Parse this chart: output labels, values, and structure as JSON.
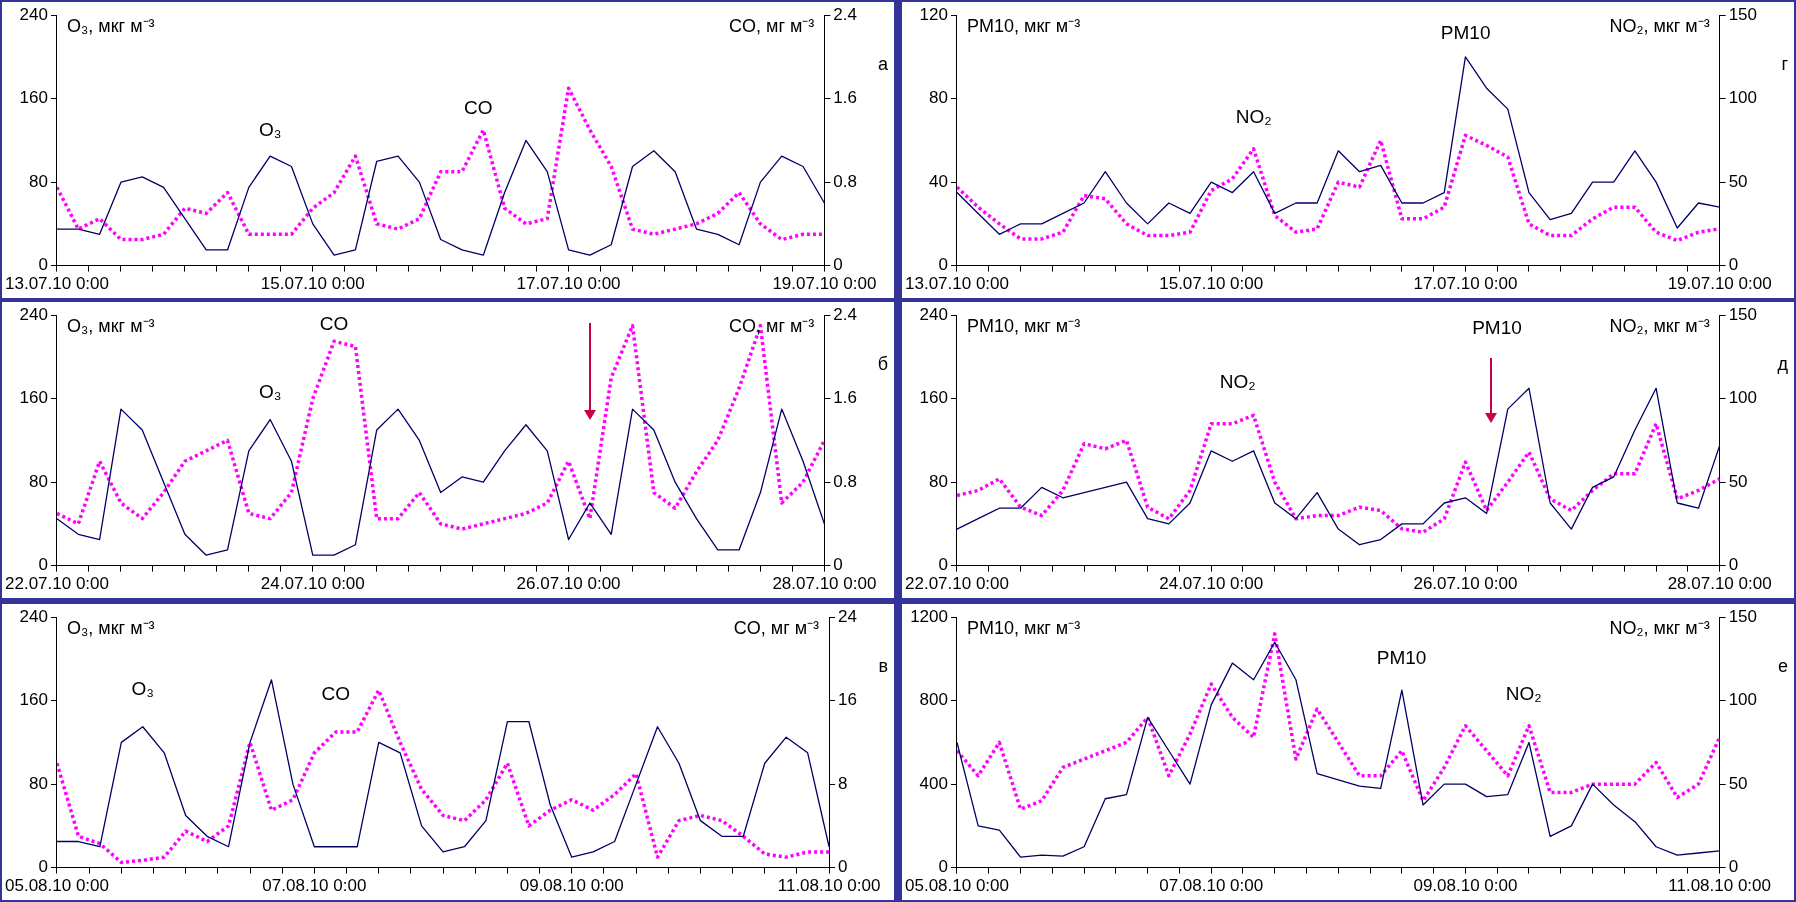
{
  "chart_data": [
    {
      "type": "line",
      "ylabel": "O₃, мкг м⁻³",
      "y2label": "CO, мг м⁻³",
      "annotations": [
        "а"
      ],
      "x": [
        "--07-13T00:00",
        "--07-13T04:00",
        "--07-13T08:00",
        "--07-13T12:00",
        "--07-13T16:00",
        "--07-13T20:00",
        "--07-14T00:00",
        "--07-14T04:00",
        "--07-14T08:00",
        "--07-14T12:00",
        "--07-14T16:00",
        "--07-14T20:00",
        "--07-15T00:00",
        "--07-15T04:00",
        "--07-15T08:00",
        "--07-15T12:00",
        "--07-15T16:00",
        "--07-15T20:00",
        "--07-16T00:00",
        "--07-16T04:00",
        "--07-16T08:00",
        "--07-16T12:00",
        "--07-16T16:00",
        "--07-16T20:00",
        "--07-17T00:00",
        "--07-17T04:00",
        "--07-17T08:00",
        "--07-17T12:00",
        "--07-17T16:00",
        "--07-17T20:00",
        "--07-18T00:00",
        "--07-18T04:00",
        "--07-18T08:00",
        "--07-18T12:00",
        "--07-18T16:00",
        "--07-18T20:00",
        "--07-19T00:00"
      ],
      "xlim": [
        "--07-13T00:00",
        "--07-19T00:00"
      ],
      "xticks": [
        {
          "value": "--07-13T00:00",
          "label": "13.07.10 0:00"
        },
        {
          "value": "--07-13T06:00",
          "label": null
        },
        {
          "value": "--07-13T12:00",
          "label": null
        },
        {
          "value": "--07-13T18:00",
          "label": null
        },
        {
          "value": "--07-14T00:00",
          "label": null
        },
        {
          "value": "--07-14T06:00",
          "label": null
        },
        {
          "value": "--07-14T12:00",
          "label": null
        },
        {
          "value": "--07-14T18:00",
          "label": null
        },
        {
          "value": "--07-15T00:00",
          "label": "15.07.10 0:00"
        },
        {
          "value": "--07-15T06:00",
          "label": null
        },
        {
          "value": "--07-15T12:00",
          "label": null
        },
        {
          "value": "--07-15T18:00",
          "label": null
        },
        {
          "value": "--07-16T00:00",
          "label": null
        },
        {
          "value": "--07-16T06:00",
          "label": null
        },
        {
          "value": "--07-16T12:00",
          "label": null
        },
        {
          "value": "--07-16T18:00",
          "label": null
        },
        {
          "value": "--07-17T00:00",
          "label": "17.07.10 0:00"
        },
        {
          "value": "--07-17T06:00",
          "label": null
        },
        {
          "value": "--07-17T12:00",
          "label": null
        },
        {
          "value": "--07-17T18:00",
          "label": null
        },
        {
          "value": "--07-18T00:00",
          "label": null
        },
        {
          "value": "--07-18T06:00",
          "label": null
        },
        {
          "value": "--07-18T12:00",
          "label": null
        },
        {
          "value": "--07-18T18:00",
          "label": null
        },
        {
          "value": "--07-19T00:00",
          "label": "19.07.10 0:00"
        }
      ],
      "ylim": [
        0,
        240
      ],
      "yticks": [
        0,
        80,
        160,
        240
      ],
      "y2lim": [
        0,
        2.4
      ],
      "y2ticks": [
        0,
        0.8,
        1.6,
        2.4
      ],
      "series": [
        {
          "name": "O₃",
          "color": "#000066",
          "line_style": "solid",
          "values": [
            35,
            35,
            30,
            80,
            85,
            75,
            45,
            15,
            15,
            75,
            105,
            95,
            40,
            10,
            15,
            100,
            105,
            80,
            25,
            15,
            10,
            70,
            120,
            90,
            15,
            10,
            20,
            95,
            110,
            90,
            35,
            30,
            20,
            80,
            105,
            95,
            60
          ]
        },
        {
          "name": "CO",
          "color": "#ff00ff",
          "line_style": "dotted",
          "axis": "y2",
          "values": [
            0.75,
            0.35,
            0.45,
            0.25,
            0.25,
            0.3,
            0.55,
            0.5,
            0.7,
            0.3,
            0.3,
            0.3,
            0.55,
            0.7,
            1.05,
            0.4,
            0.35,
            0.45,
            0.9,
            0.9,
            1.3,
            0.55,
            0.4,
            0.45,
            1.7,
            1.3,
            0.95,
            0.35,
            0.3,
            0.35,
            0.4,
            0.5,
            0.7,
            0.4,
            0.25,
            0.3,
            0.3
          ]
        }
      ]
    },
    {
      "type": "line",
      "ylabel": "O₃, мкг м⁻³",
      "y2label": "CO, мг м⁻³",
      "annotations": [
        "б"
      ],
      "x": [
        "--07-22T00:00",
        "--07-22T04:00",
        "--07-22T08:00",
        "--07-22T12:00",
        "--07-22T16:00",
        "--07-22T20:00",
        "--07-23T00:00",
        "--07-23T04:00",
        "--07-23T08:00",
        "--07-23T12:00",
        "--07-23T16:00",
        "--07-23T20:00",
        "--07-24T00:00",
        "--07-24T04:00",
        "--07-24T08:00",
        "--07-24T12:00",
        "--07-24T16:00",
        "--07-24T20:00",
        "--07-25T00:00",
        "--07-25T04:00",
        "--07-25T08:00",
        "--07-25T12:00",
        "--07-25T16:00",
        "--07-25T20:00",
        "--07-26T00:00",
        "--07-26T04:00",
        "--07-26T08:00",
        "--07-26T12:00",
        "--07-26T16:00",
        "--07-26T20:00",
        "--07-27T00:00",
        "--07-27T04:00",
        "--07-27T08:00",
        "--07-27T12:00",
        "--07-27T16:00",
        "--07-27T20:00",
        "--07-28T00:00"
      ],
      "xlim": [
        "--07-22T00:00",
        "--07-28T00:00"
      ],
      "xticks": [
        {
          "value": "--07-22T00:00",
          "label": "22.07.10 0:00"
        },
        {
          "value": "--07-22T06:00",
          "label": null
        },
        {
          "value": "--07-22T12:00",
          "label": null
        },
        {
          "value": "--07-22T18:00",
          "label": null
        },
        {
          "value": "--07-23T00:00",
          "label": null
        },
        {
          "value": "--07-23T06:00",
          "label": null
        },
        {
          "value": "--07-23T12:00",
          "label": null
        },
        {
          "value": "--07-23T18:00",
          "label": null
        },
        {
          "value": "--07-24T00:00",
          "label": "24.07.10 0:00"
        },
        {
          "value": "--07-24T06:00",
          "label": null
        },
        {
          "value": "--07-24T12:00",
          "label": null
        },
        {
          "value": "--07-24T18:00",
          "label": null
        },
        {
          "value": "--07-25T00:00",
          "label": null
        },
        {
          "value": "--07-25T06:00",
          "label": null
        },
        {
          "value": "--07-25T12:00",
          "label": null
        },
        {
          "value": "--07-25T18:00",
          "label": null
        },
        {
          "value": "--07-26T00:00",
          "label": "26.07.10 0:00"
        },
        {
          "value": "--07-26T06:00",
          "label": null
        },
        {
          "value": "--07-26T12:00",
          "label": null
        },
        {
          "value": "--07-26T18:00",
          "label": null
        },
        {
          "value": "--07-27T00:00",
          "label": null
        },
        {
          "value": "--07-27T06:00",
          "label": null
        },
        {
          "value": "--07-27T12:00",
          "label": null
        },
        {
          "value": "--07-27T18:00",
          "label": null
        },
        {
          "value": "--07-28T00:00",
          "label": "28.07.10 0:00"
        }
      ],
      "ylim": [
        0,
        240
      ],
      "yticks": [
        0,
        80,
        160,
        240
      ],
      "y2lim": [
        0,
        2.4
      ],
      "y2ticks": [
        0,
        0.8,
        1.6,
        2.4
      ],
      "series": [
        {
          "name": "O₃",
          "color": "#000066",
          "line_style": "solid",
          "values": [
            45,
            30,
            25,
            150,
            130,
            80,
            30,
            10,
            15,
            110,
            140,
            100,
            10,
            10,
            20,
            130,
            150,
            120,
            70,
            85,
            80,
            110,
            135,
            110,
            25,
            60,
            30,
            150,
            130,
            80,
            45,
            15,
            15,
            70,
            150,
            100,
            40
          ]
        },
        {
          "name": "CO",
          "color": "#ff00ff",
          "line_style": "dotted",
          "axis": "y2",
          "values": [
            0.5,
            0.4,
            1.0,
            0.6,
            0.45,
            0.7,
            1.0,
            1.1,
            1.2,
            0.5,
            0.45,
            0.7,
            1.6,
            2.15,
            2.1,
            0.45,
            0.45,
            0.7,
            0.4,
            0.35,
            0.4,
            0.45,
            0.5,
            0.6,
            1.0,
            0.45,
            1.8,
            2.3,
            0.7,
            0.55,
            0.9,
            1.2,
            1.7,
            2.3,
            0.6,
            0.8,
            1.2
          ]
        }
      ]
    },
    {
      "type": "line",
      "ylabel": "O₃, мкг м⁻³",
      "y2label": "CO, мг м⁻³",
      "annotations": [
        "в"
      ],
      "x": [
        "--08-05T00:00",
        "--08-05T04:00",
        "--08-05T08:00",
        "--08-05T12:00",
        "--08-05T16:00",
        "--08-05T20:00",
        "--08-06T00:00",
        "--08-06T04:00",
        "--08-06T08:00",
        "--08-06T12:00",
        "--08-06T16:00",
        "--08-06T20:00",
        "--08-07T00:00",
        "--08-07T04:00",
        "--08-07T08:00",
        "--08-07T12:00",
        "--08-07T16:00",
        "--08-07T20:00",
        "--08-08T00:00",
        "--08-08T04:00",
        "--08-08T08:00",
        "--08-08T12:00",
        "--08-08T16:00",
        "--08-08T20:00",
        "--08-09T00:00",
        "--08-09T04:00",
        "--08-09T08:00",
        "--08-09T12:00",
        "--08-09T16:00",
        "--08-09T20:00",
        "--08-10T00:00",
        "--08-10T04:00",
        "--08-10T08:00",
        "--08-10T12:00",
        "--08-10T16:00",
        "--08-10T20:00",
        "--08-11T00:00"
      ],
      "xlim": [
        "--08-05T00:00",
        "--08-11T00:00"
      ],
      "xticks": [
        {
          "value": "--08-05T00:00",
          "label": "05.08.10 0:00"
        },
        {
          "value": "--08-05T06:00",
          "label": null
        },
        {
          "value": "--08-05T12:00",
          "label": null
        },
        {
          "value": "--08-05T18:00",
          "label": null
        },
        {
          "value": "--08-06T00:00",
          "label": null
        },
        {
          "value": "--08-06T06:00",
          "label": null
        },
        {
          "value": "--08-06T12:00",
          "label": null
        },
        {
          "value": "--08-06T18:00",
          "label": null
        },
        {
          "value": "--08-07T00:00",
          "label": "07.08.10 0:00"
        },
        {
          "value": "--08-07T06:00",
          "label": null
        },
        {
          "value": "--08-07T12:00",
          "label": null
        },
        {
          "value": "--08-07T18:00",
          "label": null
        },
        {
          "value": "--08-08T00:00",
          "label": null
        },
        {
          "value": "--08-08T06:00",
          "label": null
        },
        {
          "value": "--08-08T12:00",
          "label": null
        },
        {
          "value": "--08-08T18:00",
          "label": null
        },
        {
          "value": "--08-09T00:00",
          "label": "09.08.10 0:00"
        },
        {
          "value": "--08-09T06:00",
          "label": null
        },
        {
          "value": "--08-09T12:00",
          "label": null
        },
        {
          "value": "--08-09T18:00",
          "label": null
        },
        {
          "value": "--08-10T00:00",
          "label": null
        },
        {
          "value": "--08-10T06:00",
          "label": null
        },
        {
          "value": "--08-10T12:00",
          "label": null
        },
        {
          "value": "--08-10T18:00",
          "label": null
        },
        {
          "value": "--08-11T00:00",
          "label": "11.08.10 0:00"
        }
      ],
      "ylim": [
        0,
        240
      ],
      "yticks": [
        0,
        80,
        160,
        240
      ],
      "y2lim": [
        0,
        24
      ],
      "y2ticks": [
        0,
        8,
        16,
        24
      ],
      "series": [
        {
          "name": "O₃",
          "color": "#000066",
          "line_style": "solid",
          "values": [
            25,
            25,
            20,
            120,
            135,
            110,
            50,
            30,
            20,
            120,
            180,
            80,
            20,
            20,
            20,
            120,
            110,
            40,
            15,
            20,
            45,
            140,
            140,
            60,
            10,
            15,
            25,
            80,
            135,
            100,
            45,
            30,
            30,
            100,
            125,
            110,
            20
          ]
        },
        {
          "name": "CO",
          "color": "#ff00ff",
          "line_style": "dotted",
          "axis": "y2",
          "values": [
            10,
            3,
            2.3,
            0.5,
            0.7,
            1,
            3.5,
            2.5,
            4,
            12,
            5.5,
            6.5,
            11,
            13,
            13,
            17,
            12,
            7.5,
            5,
            4.5,
            6.5,
            10,
            4,
            5.5,
            6.5,
            5.5,
            7,
            9,
            1,
            4.5,
            5,
            4.5,
            3,
            1.3,
            1,
            1.5,
            1.5
          ]
        }
      ]
    },
    {
      "type": "line",
      "ylabel": "PM10, мкг м⁻³",
      "y2label": "NO₂, мкг м⁻³",
      "annotations": [
        "г"
      ],
      "x": [
        "--07-13T00:00",
        "--07-13T04:00",
        "--07-13T08:00",
        "--07-13T12:00",
        "--07-13T16:00",
        "--07-13T20:00",
        "--07-14T00:00",
        "--07-14T04:00",
        "--07-14T08:00",
        "--07-14T12:00",
        "--07-14T16:00",
        "--07-14T20:00",
        "--07-15T00:00",
        "--07-15T04:00",
        "--07-15T08:00",
        "--07-15T12:00",
        "--07-15T16:00",
        "--07-15T20:00",
        "--07-16T00:00",
        "--07-16T04:00",
        "--07-16T08:00",
        "--07-16T12:00",
        "--07-16T16:00",
        "--07-16T20:00",
        "--07-17T00:00",
        "--07-17T04:00",
        "--07-17T08:00",
        "--07-17T12:00",
        "--07-17T16:00",
        "--07-17T20:00",
        "--07-18T00:00",
        "--07-18T04:00",
        "--07-18T08:00",
        "--07-18T12:00",
        "--07-18T16:00",
        "--07-18T20:00",
        "--07-19T00:00"
      ],
      "xlim": [
        "--07-13T00:00",
        "--07-19T00:00"
      ],
      "xticks": [
        {
          "value": "--07-13T00:00",
          "label": "13.07.10 0:00"
        },
        {
          "value": "--07-13T06:00",
          "label": null
        },
        {
          "value": "--07-13T12:00",
          "label": null
        },
        {
          "value": "--07-13T18:00",
          "label": null
        },
        {
          "value": "--07-14T00:00",
          "label": null
        },
        {
          "value": "--07-14T06:00",
          "label": null
        },
        {
          "value": "--07-14T12:00",
          "label": null
        },
        {
          "value": "--07-14T18:00",
          "label": null
        },
        {
          "value": "--07-15T00:00",
          "label": "15.07.10 0:00"
        },
        {
          "value": "--07-15T06:00",
          "label": null
        },
        {
          "value": "--07-15T12:00",
          "label": null
        },
        {
          "value": "--07-15T18:00",
          "label": null
        },
        {
          "value": "--07-16T00:00",
          "label": null
        },
        {
          "value": "--07-16T06:00",
          "label": null
        },
        {
          "value": "--07-16T12:00",
          "label": null
        },
        {
          "value": "--07-16T18:00",
          "label": null
        },
        {
          "value": "--07-17T00:00",
          "label": "17.07.10 0:00"
        },
        {
          "value": "--07-17T06:00",
          "label": null
        },
        {
          "value": "--07-17T12:00",
          "label": null
        },
        {
          "value": "--07-17T18:00",
          "label": null
        },
        {
          "value": "--07-18T00:00",
          "label": null
        },
        {
          "value": "--07-18T06:00",
          "label": null
        },
        {
          "value": "--07-18T12:00",
          "label": null
        },
        {
          "value": "--07-18T18:00",
          "label": null
        },
        {
          "value": "--07-19T00:00",
          "label": "19.07.10 0:00"
        }
      ],
      "ylim": [
        0,
        120
      ],
      "yticks": [
        0,
        40,
        80,
        120
      ],
      "y2lim": [
        0,
        150
      ],
      "y2ticks": [
        0,
        50,
        100,
        150
      ],
      "series": [
        {
          "name": "PM10",
          "color": "#000066",
          "line_style": "solid",
          "values": [
            35,
            25,
            15,
            20,
            20,
            25,
            30,
            45,
            30,
            20,
            30,
            25,
            40,
            35,
            45,
            25,
            30,
            30,
            55,
            45,
            48,
            30,
            30,
            35,
            100,
            85,
            75,
            35,
            22,
            25,
            40,
            40,
            55,
            40,
            18,
            30,
            28
          ]
        },
        {
          "name": "NO₂",
          "color": "#ff00ff",
          "line_style": "dotted",
          "axis": "y2",
          "values": [
            47,
            35,
            25,
            16,
            16,
            20,
            42,
            40,
            25,
            18,
            18,
            20,
            45,
            52,
            70,
            30,
            20,
            22,
            50,
            47,
            75,
            28,
            28,
            35,
            78,
            72,
            65,
            25,
            18,
            18,
            28,
            35,
            35,
            20,
            15,
            20,
            22
          ]
        }
      ]
    },
    {
      "type": "line",
      "ylabel": "PM10, мкг м⁻³",
      "y2label": "NO₂, мкг м⁻³",
      "annotations": [
        "д"
      ],
      "x": [
        "--07-22T00:00",
        "--07-22T04:00",
        "--07-22T08:00",
        "--07-22T12:00",
        "--07-22T16:00",
        "--07-22T20:00",
        "--07-23T00:00",
        "--07-23T04:00",
        "--07-23T08:00",
        "--07-23T12:00",
        "--07-23T16:00",
        "--07-23T20:00",
        "--07-24T00:00",
        "--07-24T04:00",
        "--07-24T08:00",
        "--07-24T12:00",
        "--07-24T16:00",
        "--07-24T20:00",
        "--07-25T00:00",
        "--07-25T04:00",
        "--07-25T08:00",
        "--07-25T12:00",
        "--07-25T16:00",
        "--07-25T20:00",
        "--07-26T00:00",
        "--07-26T04:00",
        "--07-26T08:00",
        "--07-26T12:00",
        "--07-26T16:00",
        "--07-26T20:00",
        "--07-27T00:00",
        "--07-27T04:00",
        "--07-27T08:00",
        "--07-27T12:00",
        "--07-27T16:00",
        "--07-27T20:00",
        "--07-28T00:00"
      ],
      "xlim": [
        "--07-22T00:00",
        "--07-28T00:00"
      ],
      "xticks": [
        {
          "value": "--07-22T00:00",
          "label": "22.07.10 0:00"
        },
        {
          "value": "--07-22T06:00",
          "label": null
        },
        {
          "value": "--07-22T12:00",
          "label": null
        },
        {
          "value": "--07-22T18:00",
          "label": null
        },
        {
          "value": "--07-23T00:00",
          "label": null
        },
        {
          "value": "--07-23T06:00",
          "label": null
        },
        {
          "value": "--07-23T12:00",
          "label": null
        },
        {
          "value": "--07-23T18:00",
          "label": null
        },
        {
          "value": "--07-24T00:00",
          "label": "24.07.10 0:00"
        },
        {
          "value": "--07-24T06:00",
          "label": null
        },
        {
          "value": "--07-24T12:00",
          "label": null
        },
        {
          "value": "--07-24T18:00",
          "label": null
        },
        {
          "value": "--07-25T00:00",
          "label": null
        },
        {
          "value": "--07-25T06:00",
          "label": null
        },
        {
          "value": "--07-25T12:00",
          "label": null
        },
        {
          "value": "--07-25T18:00",
          "label": null
        },
        {
          "value": "--07-26T00:00",
          "label": "26.07.10 0:00"
        },
        {
          "value": "--07-26T06:00",
          "label": null
        },
        {
          "value": "--07-26T12:00",
          "label": null
        },
        {
          "value": "--07-26T18:00",
          "label": null
        },
        {
          "value": "--07-27T00:00",
          "label": null
        },
        {
          "value": "--07-27T06:00",
          "label": null
        },
        {
          "value": "--07-27T12:00",
          "label": null
        },
        {
          "value": "--07-27T18:00",
          "label": null
        },
        {
          "value": "--07-28T00:00",
          "label": "28.07.10 0:00"
        }
      ],
      "ylim": [
        0,
        240
      ],
      "yticks": [
        0,
        80,
        160,
        240
      ],
      "y2lim": [
        0,
        150
      ],
      "y2ticks": [
        0,
        50,
        100,
        150
      ],
      "series": [
        {
          "name": "PM10",
          "color": "#000066",
          "line_style": "solid",
          "values": [
            35,
            45,
            55,
            55,
            75,
            65,
            70,
            75,
            80,
            45,
            40,
            60,
            110,
            100,
            110,
            60,
            45,
            70,
            35,
            20,
            25,
            40,
            40,
            60,
            65,
            50,
            150,
            170,
            60,
            35,
            75,
            85,
            130,
            170,
            60,
            55,
            115
          ]
        },
        {
          "name": "NO₂",
          "color": "#ff00ff",
          "line_style": "dotted",
          "axis": "y2",
          "values": [
            42,
            45,
            52,
            35,
            30,
            45,
            73,
            70,
            75,
            35,
            28,
            45,
            85,
            85,
            90,
            50,
            28,
            30,
            30,
            35,
            33,
            22,
            20,
            28,
            62,
            33,
            50,
            68,
            40,
            33,
            45,
            55,
            55,
            85,
            40,
            45,
            52
          ]
        }
      ]
    },
    {
      "type": "line",
      "ylabel": "PM10, мкг м⁻³",
      "y2label": "NO₂, мкг м⁻³",
      "annotations": [
        "е"
      ],
      "x": [
        "--08-05T00:00",
        "--08-05T04:00",
        "--08-05T08:00",
        "--08-05T12:00",
        "--08-05T16:00",
        "--08-05T20:00",
        "--08-06T00:00",
        "--08-06T04:00",
        "--08-06T08:00",
        "--08-06T12:00",
        "--08-06T16:00",
        "--08-06T20:00",
        "--08-07T00:00",
        "--08-07T04:00",
        "--08-07T08:00",
        "--08-07T12:00",
        "--08-07T16:00",
        "--08-07T20:00",
        "--08-08T00:00",
        "--08-08T04:00",
        "--08-08T08:00",
        "--08-08T12:00",
        "--08-08T16:00",
        "--08-08T20:00",
        "--08-09T00:00",
        "--08-09T04:00",
        "--08-09T08:00",
        "--08-09T12:00",
        "--08-09T16:00",
        "--08-09T20:00",
        "--08-10T00:00",
        "--08-10T04:00",
        "--08-10T08:00",
        "--08-10T12:00",
        "--08-10T16:00",
        "--08-10T20:00",
        "--08-11T00:00"
      ],
      "xlim": [
        "--08-05T00:00",
        "--08-11T00:00"
      ],
      "xticks": [
        {
          "value": "--08-05T00:00",
          "label": "05.08.10 0:00"
        },
        {
          "value": "--08-05T06:00",
          "label": null
        },
        {
          "value": "--08-05T12:00",
          "label": null
        },
        {
          "value": "--08-05T18:00",
          "label": null
        },
        {
          "value": "--08-06T00:00",
          "label": null
        },
        {
          "value": "--08-06T06:00",
          "label": null
        },
        {
          "value": "--08-06T12:00",
          "label": null
        },
        {
          "value": "--08-06T18:00",
          "label": null
        },
        {
          "value": "--08-07T00:00",
          "label": "07.08.10 0:00"
        },
        {
          "value": "--08-07T06:00",
          "label": null
        },
        {
          "value": "--08-07T12:00",
          "label": null
        },
        {
          "value": "--08-07T18:00",
          "label": null
        },
        {
          "value": "--08-08T00:00",
          "label": null
        },
        {
          "value": "--08-08T06:00",
          "label": null
        },
        {
          "value": "--08-08T12:00",
          "label": null
        },
        {
          "value": "--08-08T18:00",
          "label": null
        },
        {
          "value": "--08-09T00:00",
          "label": "09.08.10 0:00"
        },
        {
          "value": "--08-09T06:00",
          "label": null
        },
        {
          "value": "--08-09T12:00",
          "label": null
        },
        {
          "value": "--08-09T18:00",
          "label": null
        },
        {
          "value": "--08-10T00:00",
          "label": null
        },
        {
          "value": "--08-10T06:00",
          "label": null
        },
        {
          "value": "--08-10T12:00",
          "label": null
        },
        {
          "value": "--08-10T18:00",
          "label": null
        },
        {
          "value": "--08-11T00:00",
          "label": "11.08.10 0:00"
        }
      ],
      "ylim": [
        0,
        1200
      ],
      "yticks": [
        0,
        400,
        800,
        1200
      ],
      "y2lim": [
        0,
        150
      ],
      "y2ticks": [
        0,
        50,
        100,
        150
      ],
      "series": [
        {
          "name": "PM10",
          "color": "#000066",
          "line_style": "solid",
          "values": [
            600,
            200,
            180,
            50,
            60,
            55,
            100,
            330,
            350,
            720,
            560,
            400,
            780,
            980,
            900,
            1080,
            900,
            450,
            420,
            390,
            380,
            850,
            300,
            400,
            400,
            340,
            350,
            600,
            150,
            200,
            400,
            300,
            220,
            100,
            60,
            70,
            80
          ]
        },
        {
          "name": "NO₂",
          "color": "#ff00ff",
          "line_style": "dotted",
          "axis": "y2",
          "values": [
            70,
            55,
            75,
            35,
            40,
            60,
            65,
            70,
            75,
            90,
            55,
            80,
            110,
            90,
            78,
            140,
            65,
            95,
            75,
            55,
            55,
            70,
            40,
            60,
            85,
            70,
            55,
            85,
            45,
            45,
            50,
            50,
            50,
            63,
            42,
            50,
            78
          ]
        }
      ]
    }
  ]
}
